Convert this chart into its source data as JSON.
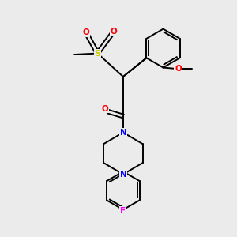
{
  "bg_color": "#ebebeb",
  "bond_color": "#000000",
  "atom_colors": {
    "N": "#0000ff",
    "O": "#ff0000",
    "S": "#cccc00",
    "F": "#ff00ff",
    "C": "#000000"
  },
  "figsize": [
    3.0,
    3.0
  ],
  "dpi": 100
}
